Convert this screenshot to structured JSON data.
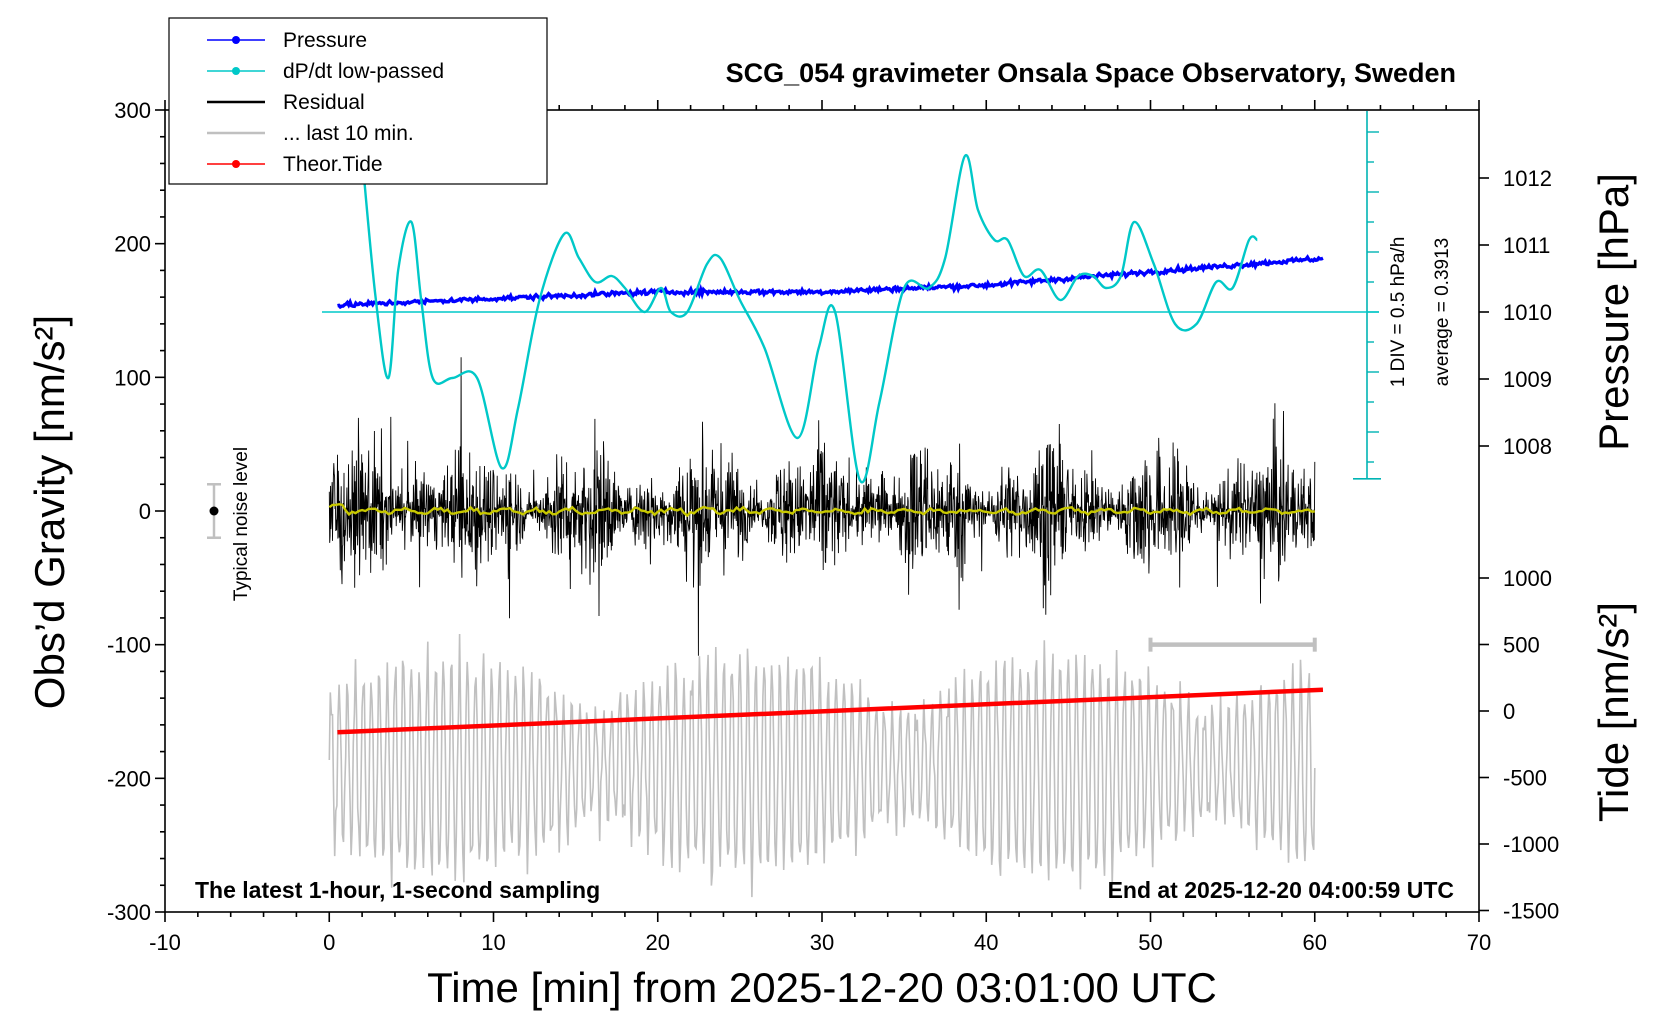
{
  "chart_data": {
    "type": "line",
    "title": "SCG_054 gravimeter Onsala Space Observatory, Sweden",
    "xlabel": "Time [min] from 2025-12-20 03:01:00 UTC",
    "ylabel_left": "Obs’d Gravity [nm/s²]",
    "ylabel_right_top": "Pressure [hPa]",
    "ylabel_right_bottom": "Tide [nm/s²]",
    "xlim": [
      -10,
      70
    ],
    "x_ticks": [
      "-10",
      "0",
      "10",
      "20",
      "30",
      "40",
      "50",
      "60",
      "70"
    ],
    "ylim_left": [
      -300,
      300
    ],
    "y_ticks_left": [
      "300",
      "200",
      "100",
      "0",
      "-100",
      "-200",
      "-300"
    ],
    "pressure_ticks": [
      "1012",
      "1011",
      "1010",
      "1009",
      "1008"
    ],
    "tide_ticks": [
      "1000",
      "500",
      "0",
      "-500",
      "-1000",
      "-1500"
    ],
    "legend": [
      {
        "label": "Pressure",
        "color": "#0000ff",
        "marker": true
      },
      {
        "label": "dP/dt low-passed",
        "color": "#00c8c8",
        "marker": true
      },
      {
        "label": "Residual",
        "color": "#000000",
        "marker": false
      },
      {
        "label": "... last 10 min.",
        "color": "#c0c0c0",
        "marker": false
      },
      {
        "label": "Theor.Tide",
        "color": "#ff0000",
        "marker": true
      }
    ],
    "series": [
      {
        "name": "Pressure",
        "color": "#0000ff",
        "units": "hPa",
        "x": [
          0.5,
          10,
          20,
          30,
          40,
          50,
          60.5
        ],
        "values": [
          1010.1,
          1010.2,
          1010.3,
          1010.3,
          1010.4,
          1010.6,
          1010.8
        ]
      },
      {
        "name": "dP/dt low-passed",
        "color": "#00c8c8",
        "units": "DIV (1 DIV = 0.5 hPa/h)",
        "x": [
          2,
          2.8,
          3.6,
          4.2,
          5.0,
          5.6,
          6.3,
          7.5,
          9.0,
          10.5,
          11.5,
          12.8,
          14.3,
          15.2,
          16.2,
          17.2,
          18.0,
          19.2,
          20.2,
          20.8,
          21.8,
          23.0,
          23.8,
          25.0,
          26.5,
          28.5,
          29.8,
          30.8,
          32.3,
          33.5,
          35.0,
          36.5,
          37.5,
          38.7,
          39.5,
          40.5,
          41.3,
          42.3,
          43.3,
          44.5,
          45.6,
          46.5,
          47.3,
          48.2,
          49.0,
          50.2,
          51.5,
          52.8,
          54.0,
          55.0,
          56.0,
          56.5
        ],
        "values": [
          2.6,
          0.3,
          -1.1,
          0.7,
          1.5,
          0.2,
          -1.1,
          -1.1,
          -1.1,
          -2.6,
          -1.6,
          0.2,
          1.3,
          0.9,
          0.5,
          0.6,
          0.4,
          -0.0,
          0.4,
          -0.0,
          -0.0,
          0.8,
          0.9,
          0.2,
          -0.6,
          -2.1,
          -0.6,
          -0.0,
          -2.8,
          -1.5,
          0.4,
          0.4,
          0.9,
          2.6,
          1.7,
          1.2,
          1.2,
          0.6,
          0.7,
          0.2,
          0.6,
          0.6,
          0.4,
          0.6,
          1.5,
          0.8,
          -0.2,
          -0.2,
          0.5,
          0.4,
          1.2,
          1.2
        ]
      },
      {
        "name": "Residual",
        "color": "#000000",
        "units": "nm/s²",
        "x_range": [
          0,
          60
        ],
        "typical_range": [
          -60,
          60
        ]
      },
      {
        "name": "... last 10 min.",
        "color": "#c0c0c0",
        "units": "nm/s²",
        "x_range": [
          0,
          60
        ],
        "typical_range": [
          -300,
          -100
        ]
      },
      {
        "name": "Theor.Tide",
        "color": "#ff0000",
        "units": "nm/s²",
        "x": [
          0.5,
          60.5
        ],
        "values": [
          -160,
          160
        ]
      }
    ],
    "annotations": {
      "div_scale": "1 DIV = 0.5 hPa/h",
      "average": "average = 0.3913",
      "noise_label": "Typical noise level",
      "noise_level": [
        -20,
        20
      ],
      "latest": "The latest 1-hour, 1-second sampling",
      "end": "End at 2025-12-20 04:00:59 UTC",
      "last10_bar": [
        50,
        60
      ]
    }
  }
}
